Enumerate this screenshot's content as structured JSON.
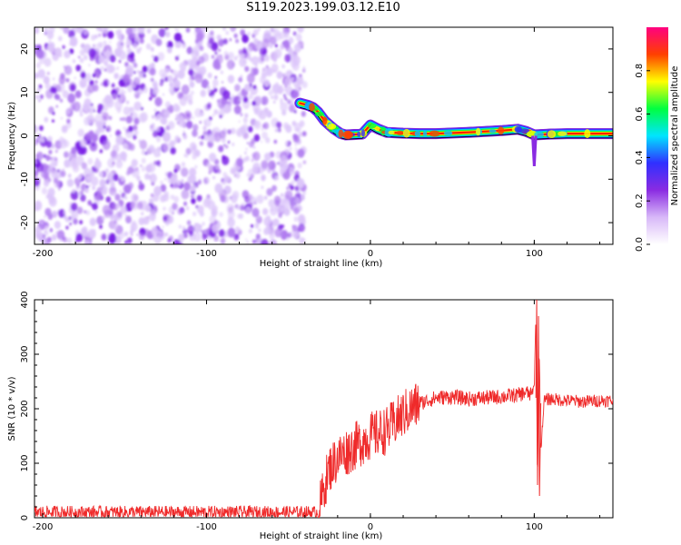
{
  "title": "S119.2023.199.03.12.E10",
  "chart_data": [
    {
      "type": "heatmap",
      "title": "S119.2023.199.03.12.E10",
      "xlabel": "Height of straight line (km)",
      "ylabel": "Frequency (Hz)",
      "xlim": [
        -205,
        148
      ],
      "ylim": [
        -25,
        25
      ],
      "xticks": [
        -200,
        -100,
        0,
        100
      ],
      "yticks": [
        -20,
        -10,
        0,
        10,
        20
      ],
      "colorbar": {
        "label": "Normalized spectral amplitude",
        "range": [
          0,
          1
        ],
        "ticks": [
          0.0,
          0.2,
          0.4,
          0.6,
          0.8
        ],
        "colors": [
          "#ffffff",
          "#d8b8f8",
          "#8a2be2",
          "#3030ff",
          "#00e5ff",
          "#00ff40",
          "#ffff00",
          "#ff4000",
          "#ff0080"
        ]
      },
      "noise_region": {
        "x": [
          -205,
          -40
        ],
        "freq": [
          -25,
          25
        ],
        "amplitude_max": 0.3
      },
      "ridge": {
        "x": [
          -43,
          -38,
          -35,
          -32,
          -28,
          -25,
          -22,
          -18,
          -15,
          -10,
          -5,
          0,
          5,
          10,
          20,
          30,
          40,
          60,
          80,
          90,
          95,
          100,
          110,
          120,
          148
        ],
        "freq": [
          7.5,
          7.0,
          6.5,
          5.5,
          3.5,
          2.5,
          1.5,
          0.5,
          0.2,
          0.3,
          0.4,
          2.5,
          1.5,
          0.8,
          0.6,
          0.5,
          0.5,
          0.8,
          1.2,
          1.5,
          1.0,
          0.2,
          0.4,
          0.5,
          0.5
        ]
      }
    },
    {
      "type": "line",
      "xlabel": "Height of straight line (km)",
      "ylabel": "SNR (10 * v/v)",
      "xlim": [
        -205,
        148
      ],
      "ylim": [
        0,
        400
      ],
      "xticks": [
        -200,
        -100,
        0,
        100
      ],
      "yticks": [
        0,
        100,
        200,
        300,
        400
      ],
      "color": "#ef2a2a",
      "x": [
        -205,
        -180,
        -150,
        -120,
        -90,
        -60,
        -40,
        -32,
        -30,
        -28,
        -25,
        -20,
        -15,
        -10,
        -5,
        0,
        5,
        10,
        15,
        20,
        25,
        30,
        40,
        50,
        60,
        70,
        80,
        90,
        95,
        98,
        100,
        101,
        102,
        103,
        104,
        106,
        110,
        120,
        130,
        140,
        148
      ],
      "y": [
        10,
        10,
        10,
        10,
        10,
        10,
        10,
        10,
        30,
        60,
        90,
        110,
        120,
        130,
        140,
        150,
        155,
        160,
        175,
        190,
        200,
        210,
        220,
        222,
        218,
        220,
        222,
        225,
        230,
        225,
        240,
        380,
        60,
        320,
        120,
        215,
        218,
        215,
        213,
        215,
        215
      ],
      "noise_amplitude": 12
    }
  ]
}
